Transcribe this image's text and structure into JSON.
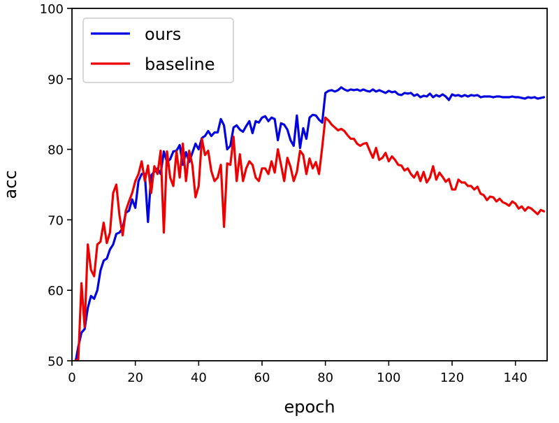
{
  "chart_data": {
    "type": "line",
    "title": "",
    "xlabel": "epoch",
    "ylabel": "acc",
    "xlim": [
      0,
      150
    ],
    "ylim": [
      50,
      100
    ],
    "x_ticks": [
      0,
      20,
      40,
      60,
      80,
      100,
      120,
      140
    ],
    "y_ticks": [
      50,
      60,
      70,
      80,
      90,
      100
    ],
    "grid": false,
    "legend": {
      "position": "top-left"
    },
    "series": [
      {
        "name": "ours",
        "color": "#0000e0",
        "points": [
          [
            1,
            49.5
          ],
          [
            2,
            52.0
          ],
          [
            3,
            54.0
          ],
          [
            4,
            54.5
          ],
          [
            5,
            57.5
          ],
          [
            6,
            59.2
          ],
          [
            7,
            58.8
          ],
          [
            8,
            60.0
          ],
          [
            9,
            62.8
          ],
          [
            10,
            64.2
          ],
          [
            11,
            64.5
          ],
          [
            12,
            65.8
          ],
          [
            13,
            66.5
          ],
          [
            14,
            68.0
          ],
          [
            15,
            68.2
          ],
          [
            16,
            68.8
          ],
          [
            17,
            71.0
          ],
          [
            18,
            71.3
          ],
          [
            19,
            72.9
          ],
          [
            20,
            71.7
          ],
          [
            21,
            75.5
          ],
          [
            22,
            76.5
          ],
          [
            23,
            76.5
          ],
          [
            24,
            69.7
          ],
          [
            25,
            76.3
          ],
          [
            26,
            76.8
          ],
          [
            27,
            77.3
          ],
          [
            28,
            76.5
          ],
          [
            29,
            79.7
          ],
          [
            30,
            78.2
          ],
          [
            31,
            78.6
          ],
          [
            32,
            79.7
          ],
          [
            33,
            79.8
          ],
          [
            34,
            80.6
          ],
          [
            35,
            77.8
          ],
          [
            36,
            79.6
          ],
          [
            37,
            78.2
          ],
          [
            38,
            79.5
          ],
          [
            39,
            80.8
          ],
          [
            40,
            80.0
          ],
          [
            41,
            81.6
          ],
          [
            42,
            81.9
          ],
          [
            43,
            82.6
          ],
          [
            44,
            81.9
          ],
          [
            45,
            82.4
          ],
          [
            46,
            82.4
          ],
          [
            47,
            84.3
          ],
          [
            48,
            83.4
          ],
          [
            49,
            80.0
          ],
          [
            50,
            80.5
          ],
          [
            51,
            83.1
          ],
          [
            52,
            83.4
          ],
          [
            53,
            82.8
          ],
          [
            54,
            82.5
          ],
          [
            55,
            83.3
          ],
          [
            56,
            84.0
          ],
          [
            57,
            82.3
          ],
          [
            58,
            84.0
          ],
          [
            59,
            83.8
          ],
          [
            60,
            84.5
          ],
          [
            61,
            84.7
          ],
          [
            62,
            84.0
          ],
          [
            63,
            84.5
          ],
          [
            64,
            84.3
          ],
          [
            65,
            81.3
          ],
          [
            66,
            83.7
          ],
          [
            67,
            83.5
          ],
          [
            68,
            82.8
          ],
          [
            69,
            81.3
          ],
          [
            70,
            80.5
          ],
          [
            71,
            84.8
          ],
          [
            72,
            80.2
          ],
          [
            73,
            83.0
          ],
          [
            74,
            81.5
          ],
          [
            75,
            84.5
          ],
          [
            76,
            84.9
          ],
          [
            77,
            84.8
          ],
          [
            78,
            84.2
          ],
          [
            79,
            83.8
          ],
          [
            80,
            88.0
          ],
          [
            81,
            88.3
          ],
          [
            82,
            88.4
          ],
          [
            83,
            88.2
          ],
          [
            84,
            88.4
          ],
          [
            85,
            88.8
          ],
          [
            86,
            88.5
          ],
          [
            87,
            88.3
          ],
          [
            88,
            88.5
          ],
          [
            89,
            88.4
          ],
          [
            90,
            88.5
          ],
          [
            91,
            88.3
          ],
          [
            92,
            88.5
          ],
          [
            93,
            88.3
          ],
          [
            94,
            88.2
          ],
          [
            95,
            88.5
          ],
          [
            96,
            88.2
          ],
          [
            97,
            88.4
          ],
          [
            98,
            88.2
          ],
          [
            99,
            88.0
          ],
          [
            100,
            88.3
          ],
          [
            101,
            88.1
          ],
          [
            102,
            88.2
          ],
          [
            103,
            87.8
          ],
          [
            104,
            87.7
          ],
          [
            105,
            88.0
          ],
          [
            106,
            87.9
          ],
          [
            107,
            88.0
          ],
          [
            108,
            87.6
          ],
          [
            109,
            87.8
          ],
          [
            110,
            87.4
          ],
          [
            111,
            87.6
          ],
          [
            112,
            87.5
          ],
          [
            113,
            87.9
          ],
          [
            114,
            87.4
          ],
          [
            115,
            87.7
          ],
          [
            116,
            87.5
          ],
          [
            117,
            87.8
          ],
          [
            118,
            87.5
          ],
          [
            119,
            87.0
          ],
          [
            120,
            87.8
          ],
          [
            121,
            87.6
          ],
          [
            122,
            87.7
          ],
          [
            123,
            87.5
          ],
          [
            124,
            87.7
          ],
          [
            125,
            87.5
          ],
          [
            126,
            87.7
          ],
          [
            127,
            87.6
          ],
          [
            128,
            87.7
          ],
          [
            129,
            87.4
          ],
          [
            130,
            87.5
          ],
          [
            131,
            87.5
          ],
          [
            132,
            87.5
          ],
          [
            133,
            87.4
          ],
          [
            134,
            87.5
          ],
          [
            135,
            87.5
          ],
          [
            136,
            87.4
          ],
          [
            137,
            87.4
          ],
          [
            138,
            87.4
          ],
          [
            139,
            87.5
          ],
          [
            140,
            87.4
          ],
          [
            141,
            87.4
          ],
          [
            142,
            87.3
          ],
          [
            143,
            87.2
          ],
          [
            144,
            87.4
          ],
          [
            145,
            87.3
          ],
          [
            146,
            87.4
          ],
          [
            147,
            87.2
          ],
          [
            148,
            87.3
          ],
          [
            149,
            87.4
          ]
        ]
      },
      {
        "name": "baseline",
        "color": "#ee0000",
        "points": [
          [
            1,
            50.0
          ],
          [
            2,
            50.2
          ],
          [
            3,
            61.0
          ],
          [
            4,
            54.8
          ],
          [
            5,
            66.5
          ],
          [
            6,
            62.9
          ],
          [
            7,
            62.0
          ],
          [
            8,
            66.5
          ],
          [
            9,
            66.9
          ],
          [
            10,
            69.6
          ],
          [
            11,
            66.7
          ],
          [
            12,
            68.2
          ],
          [
            13,
            73.8
          ],
          [
            14,
            75.0
          ],
          [
            15,
            70.6
          ],
          [
            16,
            67.8
          ],
          [
            17,
            71.3
          ],
          [
            18,
            72.6
          ],
          [
            19,
            73.8
          ],
          [
            20,
            75.5
          ],
          [
            21,
            76.5
          ],
          [
            22,
            78.3
          ],
          [
            23,
            75.5
          ],
          [
            24,
            77.7
          ],
          [
            25,
            73.8
          ],
          [
            26,
            77.6
          ],
          [
            27,
            76.5
          ],
          [
            28,
            79.8
          ],
          [
            29,
            68.2
          ],
          [
            30,
            79.7
          ],
          [
            31,
            76.0
          ],
          [
            32,
            74.8
          ],
          [
            33,
            79.7
          ],
          [
            34,
            76.0
          ],
          [
            35,
            80.8
          ],
          [
            36,
            75.5
          ],
          [
            37,
            79.8
          ],
          [
            38,
            77.8
          ],
          [
            39,
            73.2
          ],
          [
            40,
            74.8
          ],
          [
            41,
            81.5
          ],
          [
            42,
            79.2
          ],
          [
            43,
            79.8
          ],
          [
            44,
            76.9
          ],
          [
            45,
            75.5
          ],
          [
            46,
            76.0
          ],
          [
            47,
            77.8
          ],
          [
            48,
            69.0
          ],
          [
            49,
            78.0
          ],
          [
            50,
            77.8
          ],
          [
            51,
            81.8
          ],
          [
            52,
            75.5
          ],
          [
            53,
            79.3
          ],
          [
            54,
            75.5
          ],
          [
            55,
            77.3
          ],
          [
            56,
            78.3
          ],
          [
            57,
            77.8
          ],
          [
            58,
            76.0
          ],
          [
            59,
            75.5
          ],
          [
            60,
            77.3
          ],
          [
            61,
            77.3
          ],
          [
            62,
            76.5
          ],
          [
            63,
            78.3
          ],
          [
            64,
            76.7
          ],
          [
            65,
            80.0
          ],
          [
            66,
            77.8
          ],
          [
            67,
            75.5
          ],
          [
            68,
            78.8
          ],
          [
            69,
            77.5
          ],
          [
            70,
            75.5
          ],
          [
            71,
            76.8
          ],
          [
            72,
            79.8
          ],
          [
            73,
            79.2
          ],
          [
            74,
            76.5
          ],
          [
            75,
            78.7
          ],
          [
            76,
            77.3
          ],
          [
            77,
            78.2
          ],
          [
            78,
            76.5
          ],
          [
            79,
            80.3
          ],
          [
            80,
            84.5
          ],
          [
            81,
            84.1
          ],
          [
            82,
            83.5
          ],
          [
            83,
            83.1
          ],
          [
            84,
            82.7
          ],
          [
            85,
            82.9
          ],
          [
            86,
            82.6
          ],
          [
            87,
            82.0
          ],
          [
            88,
            81.5
          ],
          [
            89,
            81.5
          ],
          [
            90,
            80.8
          ],
          [
            91,
            80.5
          ],
          [
            92,
            80.8
          ],
          [
            93,
            80.9
          ],
          [
            94,
            79.8
          ],
          [
            95,
            78.8
          ],
          [
            96,
            80.2
          ],
          [
            97,
            78.5
          ],
          [
            98,
            78.8
          ],
          [
            99,
            79.5
          ],
          [
            100,
            78.3
          ],
          [
            101,
            79.0
          ],
          [
            102,
            78.5
          ],
          [
            103,
            77.8
          ],
          [
            104,
            77.7
          ],
          [
            105,
            77.0
          ],
          [
            106,
            77.3
          ],
          [
            107,
            76.5
          ],
          [
            108,
            76.0
          ],
          [
            109,
            76.8
          ],
          [
            110,
            75.5
          ],
          [
            111,
            76.8
          ],
          [
            112,
            75.3
          ],
          [
            113,
            76.0
          ],
          [
            114,
            77.6
          ],
          [
            115,
            75.7
          ],
          [
            116,
            76.7
          ],
          [
            117,
            76.1
          ],
          [
            118,
            75.4
          ],
          [
            119,
            75.8
          ],
          [
            120,
            74.3
          ],
          [
            121,
            74.3
          ],
          [
            122,
            75.7
          ],
          [
            123,
            75.3
          ],
          [
            124,
            75.3
          ],
          [
            125,
            74.8
          ],
          [
            126,
            74.8
          ],
          [
            127,
            74.3
          ],
          [
            128,
            74.7
          ],
          [
            129,
            73.7
          ],
          [
            130,
            73.5
          ],
          [
            131,
            72.8
          ],
          [
            132,
            73.3
          ],
          [
            133,
            73.2
          ],
          [
            134,
            72.6
          ],
          [
            135,
            73.0
          ],
          [
            136,
            72.5
          ],
          [
            137,
            72.3
          ],
          [
            138,
            72.0
          ],
          [
            139,
            72.6
          ],
          [
            140,
            72.3
          ],
          [
            141,
            71.6
          ],
          [
            142,
            71.9
          ],
          [
            143,
            71.3
          ],
          [
            144,
            71.8
          ],
          [
            145,
            71.6
          ],
          [
            146,
            71.2
          ],
          [
            147,
            70.8
          ],
          [
            148,
            71.4
          ],
          [
            149,
            71.2
          ]
        ]
      }
    ]
  }
}
